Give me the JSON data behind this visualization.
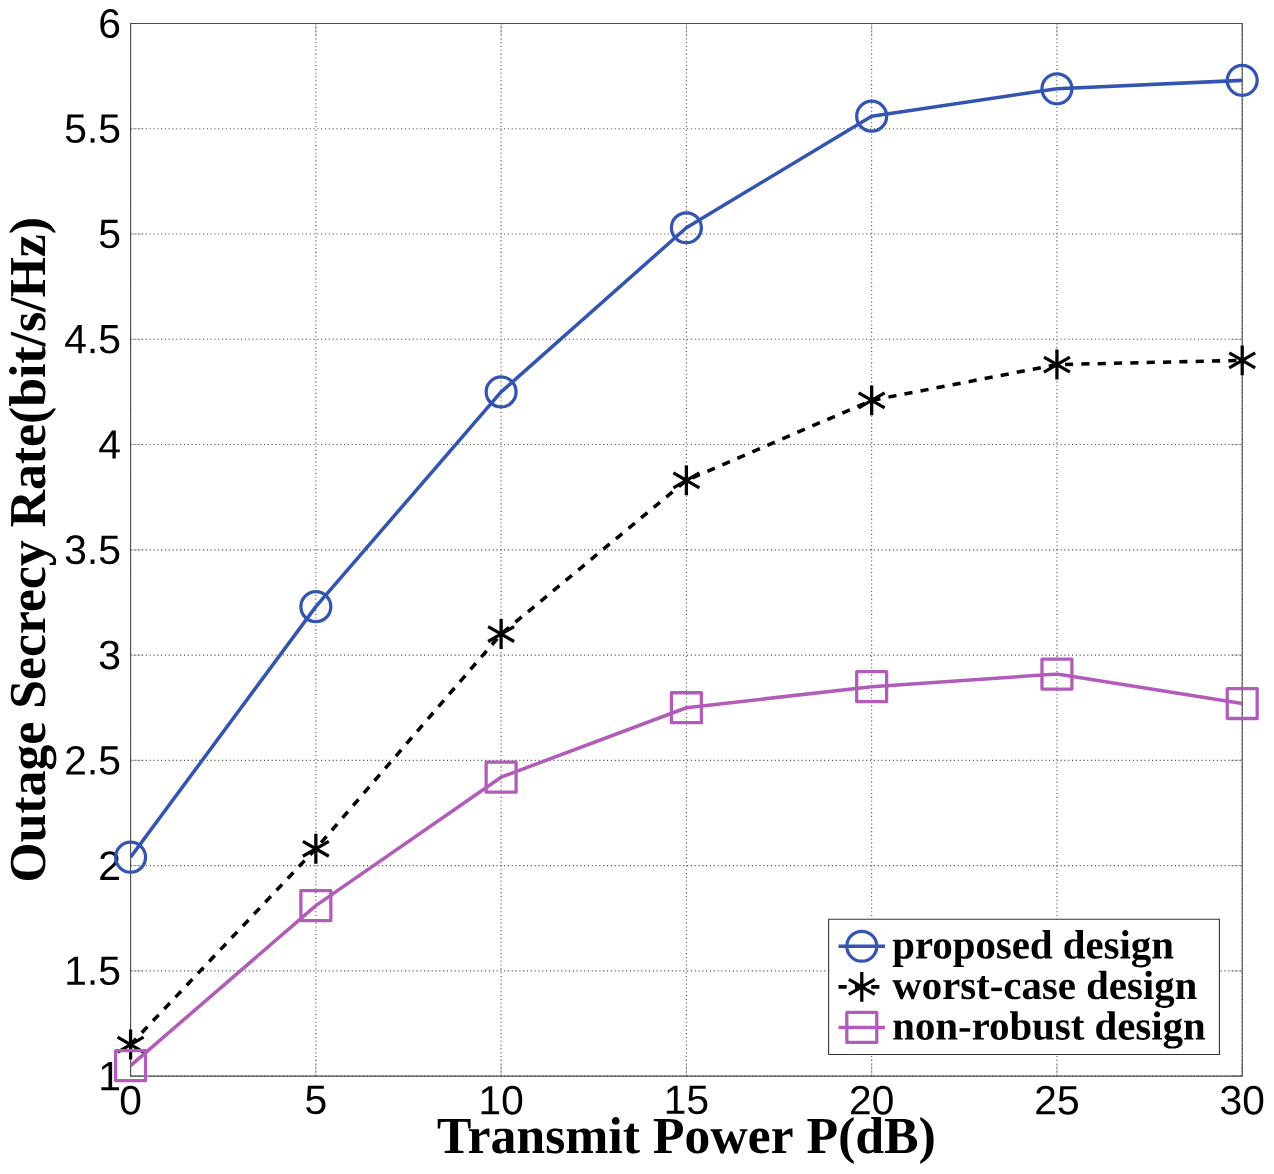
{
  "chart_data": {
    "type": "line",
    "xlabel": "Transmit Power P(dB)",
    "ylabel": "Outage Secrecy Rate(bit/s/Hz)",
    "x": [
      0,
      5,
      10,
      15,
      20,
      25,
      30
    ],
    "series": [
      {
        "name": "proposed design",
        "color": "#3355b0",
        "marker": "circle",
        "line_style": "solid",
        "values": [
          2.04,
          3.23,
          4.25,
          5.03,
          5.56,
          5.69,
          5.73
        ]
      },
      {
        "name": "worst-case design",
        "color": "#000000",
        "marker": "cross",
        "line_style": "dashed",
        "values": [
          1.15,
          2.08,
          3.1,
          3.83,
          4.21,
          4.38,
          4.4
        ]
      },
      {
        "name": "non-robust design",
        "color": "#b05cb8",
        "marker": "square",
        "line_style": "solid",
        "values": [
          1.05,
          1.81,
          2.42,
          2.75,
          2.85,
          2.91,
          2.77
        ]
      }
    ],
    "xlim": [
      0,
      30
    ],
    "xticks": [
      0,
      5,
      10,
      15,
      20,
      25,
      30
    ],
    "ylim": [
      1,
      6
    ],
    "yticks": [
      1,
      1.5,
      2,
      2.5,
      3,
      3.5,
      4,
      4.5,
      5,
      5.5,
      6
    ],
    "grid": true,
    "legend": "bottom right"
  }
}
